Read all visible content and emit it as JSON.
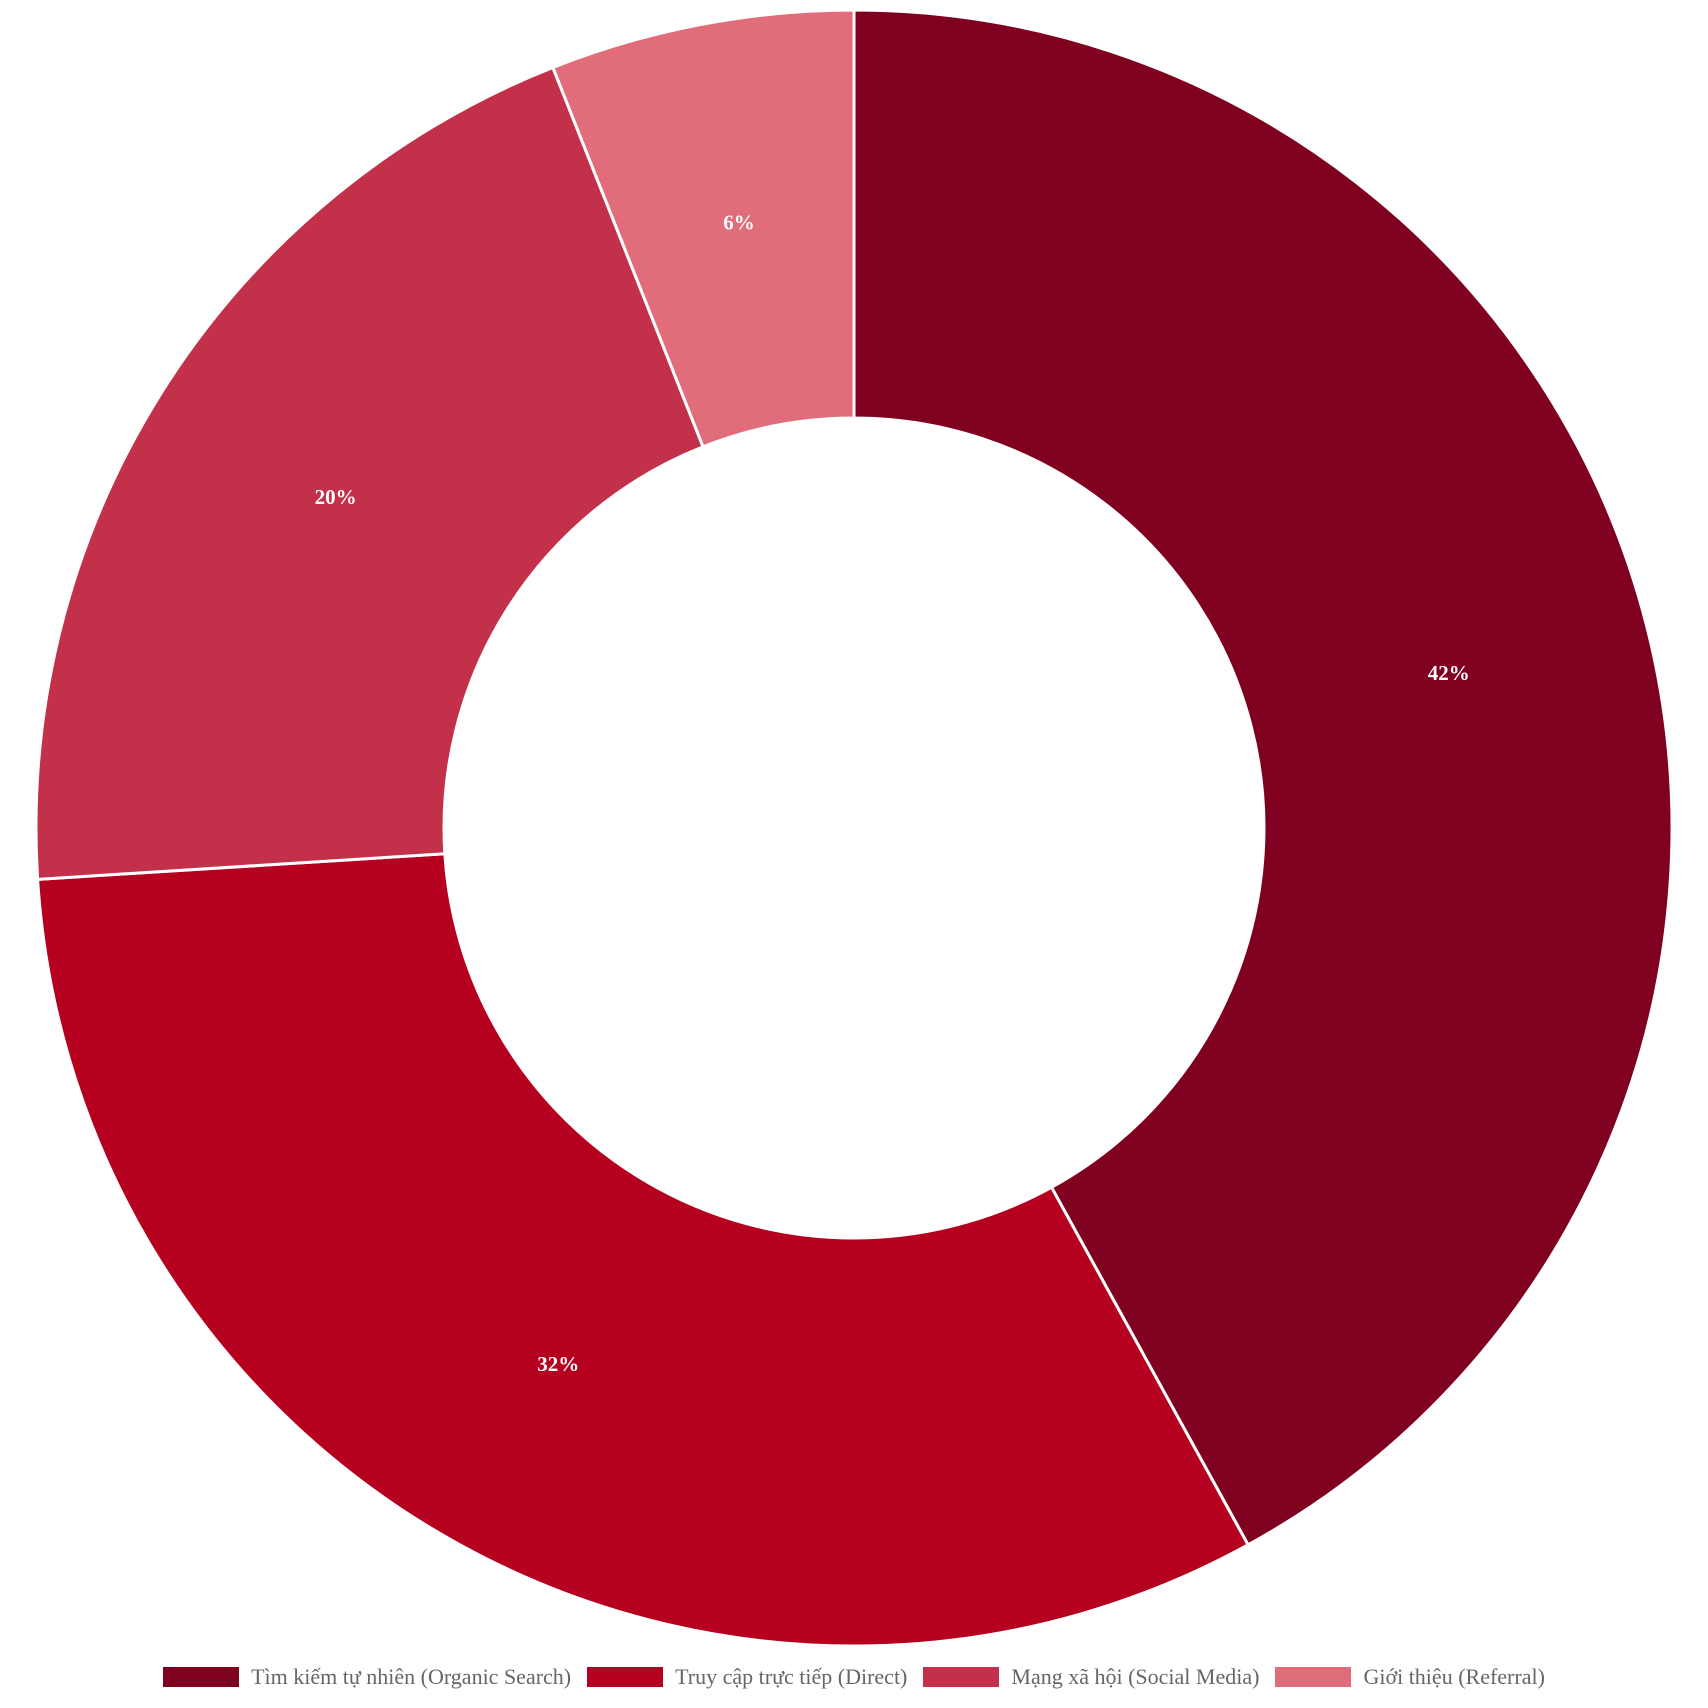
{
  "chart_data": {
    "type": "pie",
    "variant": "donut",
    "title": "",
    "start_angle_deg": 0,
    "direction": "clockwise",
    "labels": [
      "Tìm kiếm tự nhiên (Organic Search)",
      "Truy cập trực tiếp (Direct)",
      "Mạng xã hội (Social Media)",
      "Giới thiệu (Referral)"
    ],
    "values": [
      42,
      32,
      20,
      6
    ],
    "value_labels": [
      "42%",
      "32%",
      "20%",
      "6%"
    ],
    "colors": [
      "#800020",
      "#B5001F",
      "#C3304A",
      "#E06D79"
    ],
    "legend_position": "bottom"
  }
}
